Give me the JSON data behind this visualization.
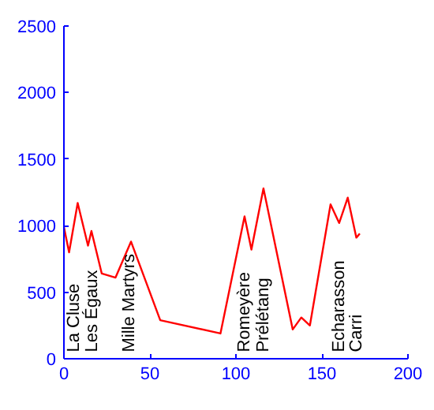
{
  "chart_data": {
    "type": "line",
    "x": [
      0,
      3,
      8,
      14,
      16,
      22,
      30,
      39,
      56,
      91,
      105,
      109,
      116,
      133,
      138,
      143,
      155,
      160,
      165,
      170,
      172
    ],
    "series": [
      {
        "color": "#ff0000",
        "values": [
          990,
          800,
          1170,
          850,
          960,
          640,
          610,
          880,
          290,
          190,
          1070,
          820,
          1280,
          220,
          310,
          250,
          1160,
          1020,
          1210,
          910,
          940
        ]
      }
    ],
    "xlim": [
      0,
      200
    ],
    "ylim": [
      0,
      2500
    ],
    "xticks": [
      0,
      50,
      100,
      150,
      200
    ],
    "yticks": [
      0,
      500,
      1000,
      1500,
      2000,
      2500
    ],
    "grid": false,
    "annotations": [
      "La Cluse",
      "Les Égaux",
      "Mille Martyrs",
      "Romeyère",
      "Prélétang",
      "Echarasson",
      "Carri"
    ]
  }
}
